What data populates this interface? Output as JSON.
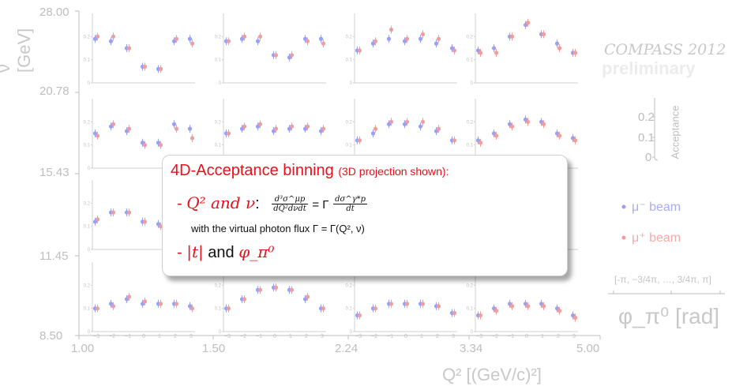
{
  "chart_data": {
    "type": "scatter",
    "title": "",
    "xlabel": "Q² [(GeV/c)²]",
    "ylabel": "ν [GeV]",
    "x_bin_edges": [
      "1.00",
      "1.50",
      "2.24",
      "3.34",
      "5.00"
    ],
    "y_bin_edges": [
      "28.00",
      "20.78",
      "15.43",
      "11.45",
      "8.50"
    ],
    "subplot_xlabel": "φ_π⁰ [rad]",
    "subplot_xticks": [
      "−3",
      "−2",
      "−1",
      "0",
      "1",
      "2",
      "3"
    ],
    "subplot_yticks": [
      "0.2",
      "0.1",
      "0"
    ],
    "phi_bins_label": "[-π, −3/4π, …, 3/4π, π]",
    "acceptance_label": "Acceptance",
    "acceptance_ticks": [
      "0.2",
      "0.1",
      "0"
    ],
    "legend": [
      {
        "name": "μ⁻ beam",
        "color": "#9aa0f2"
      },
      {
        "name": "μ⁺ beam",
        "color": "#f59b9b"
      }
    ],
    "x": [
      -3,
      -2,
      -1,
      0,
      1,
      2,
      3
    ],
    "panels": [
      {
        "row": 0,
        "col": 0,
        "mu_minus": [
          0.19,
          0.18,
          0.15,
          0.07,
          0.06,
          0.18,
          0.19
        ],
        "mu_plus": [
          0.2,
          0.2,
          0.15,
          0.07,
          0.06,
          0.19,
          0.17
        ]
      },
      {
        "row": 0,
        "col": 1,
        "mu_minus": [
          0.18,
          0.19,
          0.18,
          0.12,
          0.11,
          0.19,
          0.19
        ],
        "mu_plus": [
          0.18,
          0.2,
          0.2,
          0.12,
          0.12,
          0.18,
          0.17
        ]
      },
      {
        "row": 0,
        "col": 2,
        "mu_minus": [
          0.14,
          0.17,
          0.19,
          0.18,
          0.19,
          0.17,
          0.15
        ],
        "mu_plus": [
          0.14,
          0.18,
          0.23,
          0.19,
          0.21,
          0.19,
          0.14
        ]
      },
      {
        "row": 0,
        "col": 3,
        "mu_minus": [
          0.14,
          0.15,
          0.2,
          0.25,
          0.21,
          0.17,
          0.13
        ],
        "mu_plus": [
          0.13,
          0.13,
          0.2,
          0.26,
          0.21,
          0.15,
          0.13
        ]
      },
      {
        "row": 1,
        "col": 0,
        "mu_minus": [
          0.15,
          0.18,
          0.16,
          0.11,
          0.11,
          0.19,
          0.17
        ],
        "mu_plus": [
          0.14,
          0.19,
          0.17,
          0.1,
          0.1,
          0.17,
          0.13
        ]
      },
      {
        "row": 1,
        "col": 1,
        "mu_minus": [
          0.15,
          0.17,
          0.18,
          0.16,
          0.17,
          0.17,
          0.16
        ],
        "mu_plus": [
          0.15,
          0.18,
          0.19,
          0.17,
          0.18,
          0.18,
          0.17
        ]
      },
      {
        "row": 1,
        "col": 2,
        "mu_minus": [
          0.12,
          0.15,
          0.19,
          0.19,
          0.18,
          0.16,
          0.12
        ],
        "mu_plus": [
          0.12,
          0.17,
          0.2,
          0.2,
          0.2,
          0.17,
          0.12
        ]
      },
      {
        "row": 1,
        "col": 3,
        "mu_minus": [
          0.12,
          0.15,
          0.19,
          0.21,
          0.2,
          0.15,
          0.13
        ],
        "mu_plus": [
          0.11,
          0.14,
          0.18,
          0.2,
          0.19,
          0.14,
          0.12
        ]
      },
      {
        "row": 2,
        "col": 0,
        "mu_minus": [
          0.12,
          0.16,
          0.16,
          0.12,
          0.11,
          0.15,
          0.14
        ],
        "mu_plus": [
          0.13,
          0.16,
          0.16,
          0.12,
          0.1,
          0.15,
          0.13
        ]
      },
      {
        "row": 3,
        "col": 0,
        "mu_minus": [
          0.1,
          0.12,
          0.14,
          0.12,
          0.12,
          0.12,
          0.11
        ],
        "mu_plus": [
          0.1,
          0.11,
          0.15,
          0.13,
          0.12,
          0.12,
          0.1
        ]
      },
      {
        "row": 3,
        "col": 1,
        "mu_minus": [
          0.1,
          0.14,
          0.18,
          0.19,
          0.18,
          0.14,
          0.1
        ],
        "mu_plus": [
          0.1,
          0.14,
          0.18,
          0.19,
          0.18,
          0.15,
          0.1
        ]
      },
      {
        "row": 3,
        "col": 2,
        "mu_minus": [
          0.07,
          0.1,
          0.12,
          0.12,
          0.12,
          0.11,
          0.08
        ],
        "mu_plus": [
          0.07,
          0.1,
          0.12,
          0.12,
          0.12,
          0.11,
          0.08
        ]
      },
      {
        "row": 3,
        "col": 3,
        "mu_minus": [
          0.07,
          0.1,
          0.12,
          0.12,
          0.12,
          0.1,
          0.07
        ],
        "mu_plus": [
          0.07,
          0.09,
          0.11,
          0.11,
          0.11,
          0.09,
          0.06
        ]
      }
    ]
  },
  "watermark": {
    "experiment": "COMPASS 2012",
    "status": "preliminary"
  },
  "callout": {
    "heading": "4D-Acceptance binning",
    "heading_note": "(3D projection shown):",
    "item1_dash": "- ",
    "item1_vars": "Q² and ν",
    "item1_colon": ":",
    "flux_formula_lhs_num": "d³σ^μp",
    "flux_formula_lhs_den": "dQ²dνdt",
    "flux_formula_equals": "= Γ",
    "flux_formula_rhs_num": "dσ^γ*p",
    "flux_formula_rhs_den": "dt",
    "flux_text": "with the virtual photon flux Γ = Γ(Q², ν)",
    "item2_dash": "- ",
    "item2_vars": "|t|",
    "item2_and": " and ",
    "item2_phi": "φ_π⁰"
  }
}
